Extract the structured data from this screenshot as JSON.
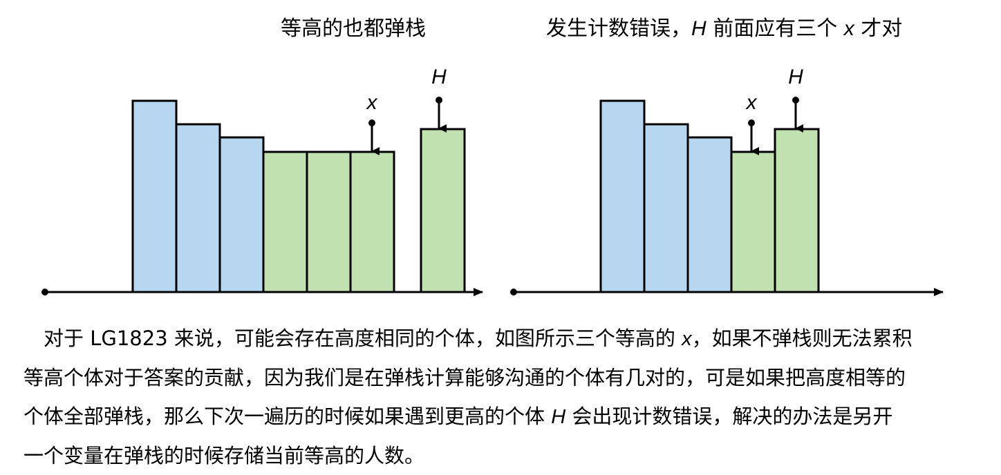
{
  "left_panel": {
    "title": "等高的也都弹栈",
    "bars": [
      {
        "height": 277,
        "fill": "blue"
      },
      {
        "height": 243,
        "fill": "blue"
      },
      {
        "height": 224,
        "fill": "blue"
      },
      {
        "height": 203,
        "fill": "green"
      },
      {
        "height": 203,
        "fill": "green"
      },
      {
        "height": 203,
        "fill": "green"
      }
    ],
    "h_bar": {
      "height": 236,
      "fill": "green"
    },
    "marker_x": "x",
    "marker_h": "H"
  },
  "right_panel": {
    "title_prefix": "发生计数错误，",
    "title_h": "H",
    "title_mid": " 前面应有三个 ",
    "title_x": "x",
    "title_suffix": " 才对",
    "bars": [
      {
        "height": 277,
        "fill": "blue"
      },
      {
        "height": 243,
        "fill": "blue"
      },
      {
        "height": 224,
        "fill": "blue"
      },
      {
        "height": 203,
        "fill": "green"
      },
      {
        "height": 236,
        "fill": "green"
      }
    ],
    "marker_x": "x",
    "marker_h": "H"
  },
  "colors": {
    "blue": "#b7d7f0",
    "green": "#c1e2b0",
    "stroke": "#000000"
  },
  "caption": {
    "line1_a": "对于 LG1823 来说，可能会存在高度相同的个体，如图所示三个等高的 ",
    "line1_x": "x",
    "line1_b": "，如果不弹栈则无法累积",
    "line2": "等高个体对于答案的贡献，因为我们是在弹栈计算能够沟通的个体有几对的，可是如果把高度相等的",
    "line3_a": "个体全部弹栈，那么下次一遍历的时候如果遇到更高的个体 ",
    "line3_h": "H",
    "line3_b": " 会出现计数错误，解决的办法是另开",
    "line4": "一个变量在弹栈的时候存储当前等高的人数。"
  }
}
